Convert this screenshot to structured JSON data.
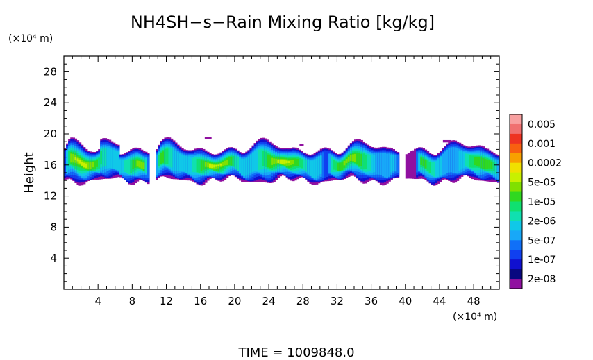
{
  "chart_data": {
    "type": "heatmap",
    "title": "NH4SH−s−Rain Mixing Ratio [kg/kg]",
    "xlabel": "",
    "ylabel": "Height",
    "x_unit": "(×10⁴ m)",
    "y_unit": "(×10⁴ m)",
    "xlim": [
      0,
      51
    ],
    "ylim": [
      0,
      30
    ],
    "x_ticks": [
      4,
      8,
      12,
      16,
      20,
      24,
      28,
      32,
      36,
      40,
      44,
      48
    ],
    "y_ticks": [
      4,
      8,
      12,
      16,
      20,
      24,
      28
    ],
    "colorbar": {
      "levels": [
        {
          "label": "0.005",
          "color": "#f8a0a0"
        },
        {
          "label": "",
          "color": "#f07070"
        },
        {
          "label": "0.001",
          "color": "#ee3322"
        },
        {
          "label": "",
          "color": "#f86010"
        },
        {
          "label": "0.0002",
          "color": "#f8a000"
        },
        {
          "label": "",
          "color": "#f0e000"
        },
        {
          "label": "5e-05",
          "color": "#c8f000"
        },
        {
          "label": "",
          "color": "#80e000"
        },
        {
          "label": "1e-05",
          "color": "#30d820"
        },
        {
          "label": "",
          "color": "#10e070"
        },
        {
          "label": "2e-06",
          "color": "#10e0b0"
        },
        {
          "label": "",
          "color": "#10c8e8"
        },
        {
          "label": "5e-07",
          "color": "#18a8f8"
        },
        {
          "label": "",
          "color": "#1070f8"
        },
        {
          "label": "1e-07",
          "color": "#1040f0"
        },
        {
          "label": "",
          "color": "#1010d0"
        },
        {
          "label": "2e-08",
          "color": "#080880"
        },
        {
          "label": "",
          "color": "#9010a0"
        }
      ]
    },
    "field_summary": {
      "layer_base_height": 14,
      "layer_top_height": 18.5,
      "peak_value": "5e-05"
    }
  },
  "footer": {
    "time_label": "TIME = 1009848.0"
  }
}
